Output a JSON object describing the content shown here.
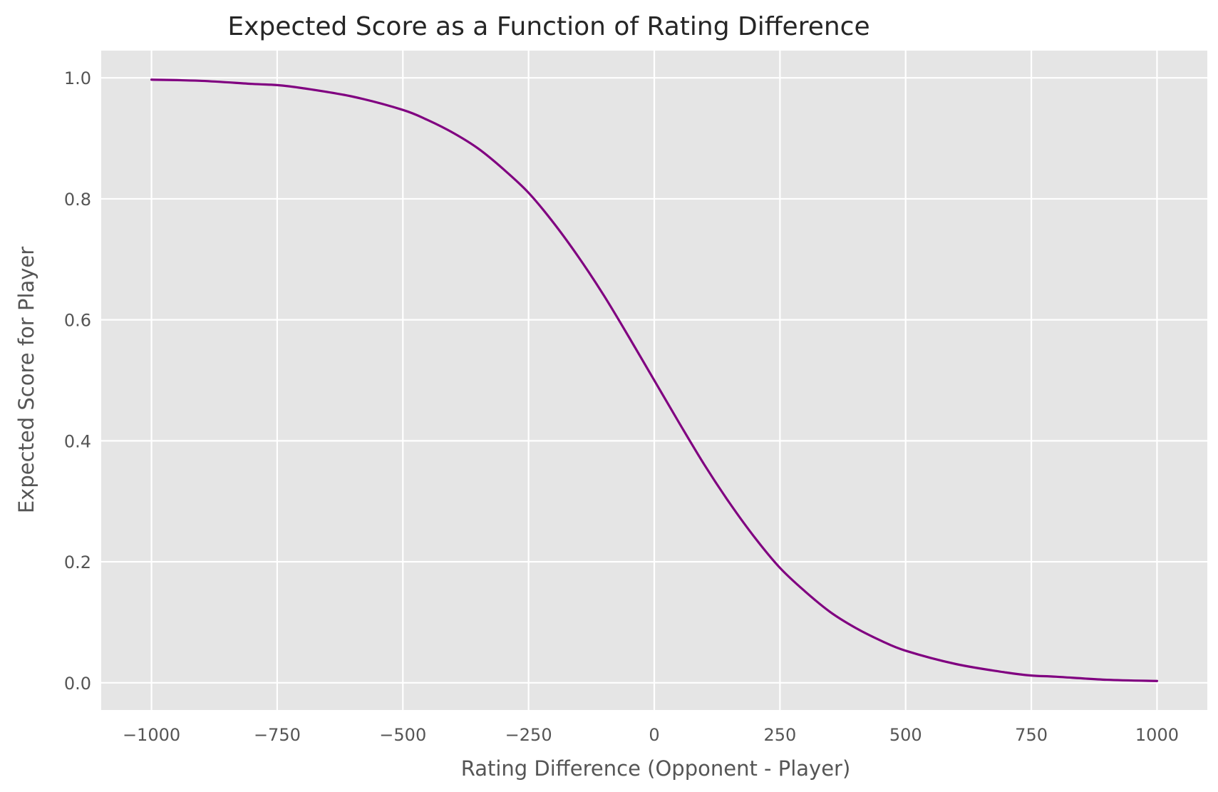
{
  "chart_data": {
    "type": "line",
    "title": "Expected Score as a Function of Rating Difference",
    "xlabel": "Rating Difference (Opponent - Player)",
    "ylabel": "Expected Score for Player",
    "xlim": [
      -1100,
      1100
    ],
    "ylim": [
      -0.045,
      1.045
    ],
    "xticks": [
      -1000,
      -750,
      -500,
      -250,
      0,
      250,
      500,
      750,
      1000
    ],
    "xtick_labels": [
      "−1000",
      "−750",
      "−500",
      "−250",
      "0",
      "250",
      "500",
      "750",
      "1000"
    ],
    "yticks": [
      0.0,
      0.2,
      0.4,
      0.6,
      0.8,
      1.0
    ],
    "ytick_labels": [
      "0.0",
      "0.2",
      "0.4",
      "0.6",
      "0.8",
      "1.0"
    ],
    "grid": true,
    "background": "#e5e5e5",
    "series": [
      {
        "color": "#800080",
        "x": [
          -1000,
          -900,
          -800,
          -750,
          -700,
          -600,
          -500,
          -450,
          -400,
          -350,
          -300,
          -250,
          -200,
          -150,
          -100,
          -50,
          0,
          50,
          100,
          150,
          200,
          250,
          300,
          350,
          400,
          450,
          500,
          600,
          700,
          750,
          800,
          900,
          1000
        ],
        "y": [
          0.997,
          0.995,
          0.99,
          0.988,
          0.983,
          0.969,
          0.947,
          0.93,
          0.909,
          0.883,
          0.849,
          0.81,
          0.76,
          0.703,
          0.64,
          0.571,
          0.5,
          0.429,
          0.36,
          0.297,
          0.24,
          0.19,
          0.151,
          0.117,
          0.091,
          0.07,
          0.053,
          0.031,
          0.017,
          0.012,
          0.01,
          0.005,
          0.003
        ]
      }
    ]
  }
}
